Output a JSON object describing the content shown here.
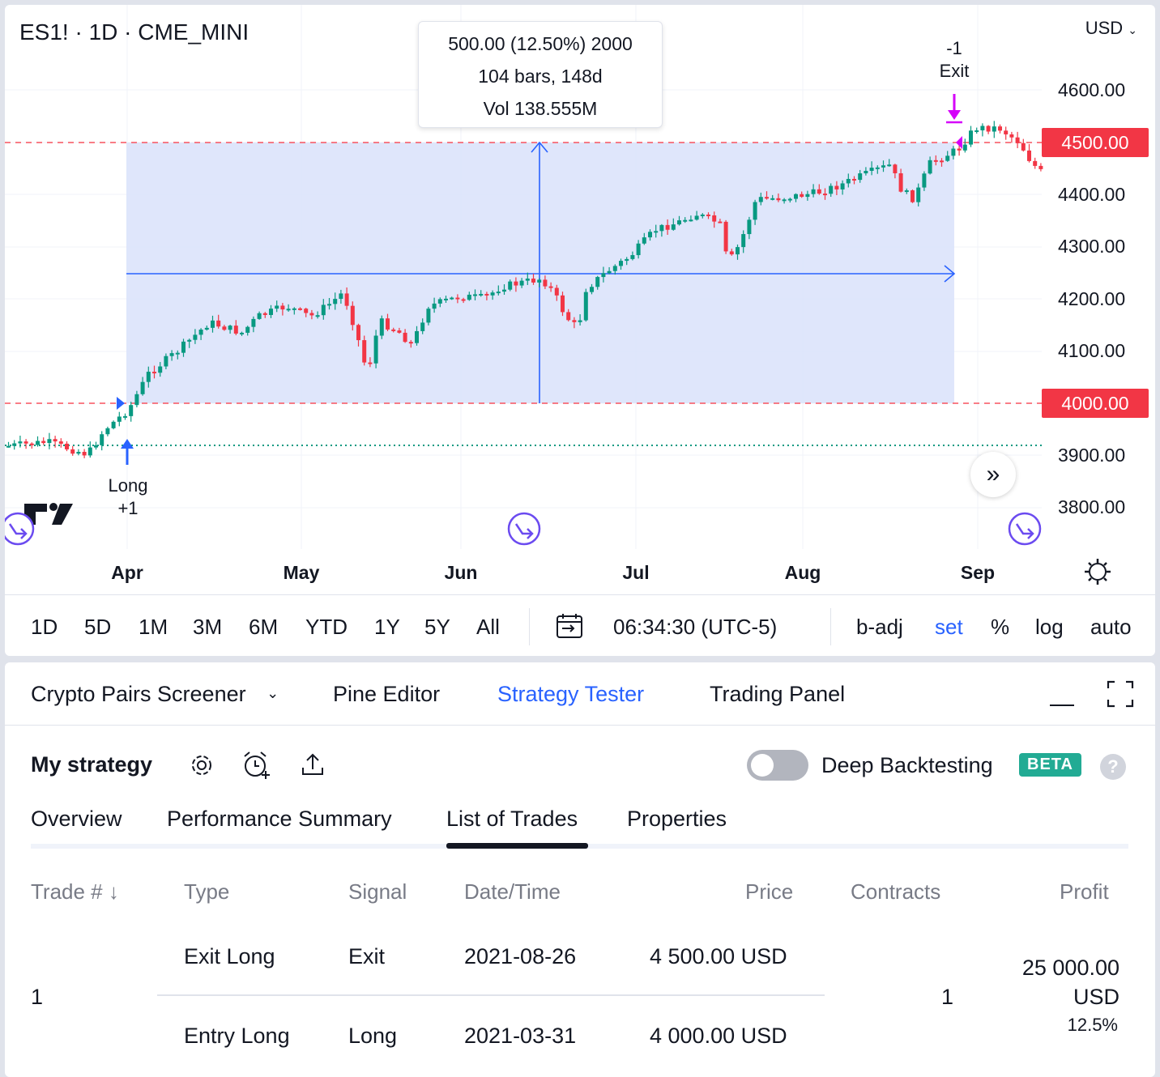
{
  "chart": {
    "symbol_title": "ES1! · 1D · CME_MINI",
    "currency": "USD",
    "tooltip": {
      "line1": "500.00 (12.50%) 2000",
      "line2": "104 bars, 148d",
      "line3": "Vol 138.555M"
    },
    "price_axis": [
      "4600.00",
      "4400.00",
      "4300.00",
      "4200.00",
      "4100.00",
      "3900.00",
      "3800.00"
    ],
    "price_flags": {
      "top": "4500.00",
      "bottom": "4000.00"
    },
    "months": [
      "Apr",
      "May",
      "Jun",
      "Jul",
      "Aug",
      "Sep"
    ],
    "entry_marker": {
      "line1": "Long",
      "line2": "+1"
    },
    "exit_marker": {
      "line1": "-1",
      "line2": "Exit"
    },
    "nav_icon": "double-chevron-right-icon",
    "colors": {
      "up": "#089981",
      "down": "#f23645",
      "range_fill": "#dbe3fb",
      "range_line": "#2962ff",
      "exit_arrow": "#d500f9",
      "jump": "#6b4bf0"
    }
  },
  "toolbar": {
    "ranges": [
      "1D",
      "5D",
      "1M",
      "3M",
      "6M",
      "YTD",
      "1Y",
      "5Y",
      "All"
    ],
    "time": "06:34:30 (UTC-5)",
    "badj": "b-adj",
    "set": "set",
    "percent": "%",
    "log": "log",
    "auto": "auto"
  },
  "bottom_tabs": {
    "screener": "Crypto Pairs Screener",
    "pine": "Pine Editor",
    "tester": "Strategy Tester",
    "trading": "Trading Panel"
  },
  "strategy": {
    "name": "My strategy",
    "deep_backtesting": "Deep Backtesting",
    "beta": "BETA",
    "deep_backtesting_enabled": false,
    "subtabs": [
      "Overview",
      "Performance Summary",
      "List of Trades",
      "Properties"
    ],
    "active_subtab": "List of Trades"
  },
  "trades": {
    "headers": {
      "trade": "Trade # ↓",
      "type": "Type",
      "signal": "Signal",
      "datetime": "Date/Time",
      "price": "Price",
      "contracts": "Contracts",
      "profit": "Profit"
    },
    "rows": [
      {
        "number": "1",
        "contracts": "1",
        "profit_line1": "25 000.00",
        "profit_line2": "USD",
        "profit_pct": "12.5%",
        "exit": {
          "type": "Exit Long",
          "signal": "Exit",
          "date": "2021-08-26",
          "price": "4 500.00 USD"
        },
        "entry": {
          "type": "Entry Long",
          "signal": "Long",
          "date": "2021-03-31",
          "price": "4 000.00 USD"
        }
      }
    ]
  }
}
